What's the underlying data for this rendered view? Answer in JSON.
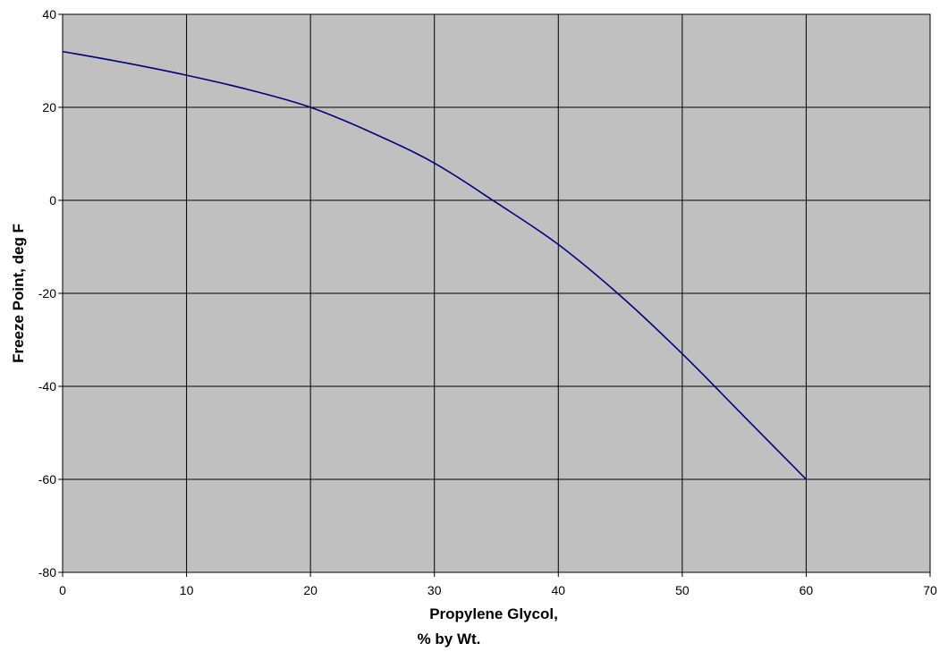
{
  "chart_data": {
    "type": "line",
    "title": "",
    "xlabel_lines": [
      "Propylene Glycol,",
      "% by Wt."
    ],
    "ylabel": "Freeze Point, deg F",
    "xlim": [
      0,
      70
    ],
    "ylim": [
      -80,
      40
    ],
    "xticks": [
      0,
      10,
      20,
      30,
      40,
      50,
      60,
      70
    ],
    "yticks": [
      40,
      20,
      0,
      -20,
      -40,
      -60,
      -80
    ],
    "grid": true,
    "legend": "none",
    "plot_background": "#c0c0c0",
    "line_color": "#000080",
    "series": [
      {
        "x": [
          0,
          5,
          10,
          15,
          20,
          25,
          30,
          35,
          40,
          45,
          50,
          55,
          60
        ],
        "y": [
          32,
          29.6,
          26.9,
          23.8,
          20,
          14.5,
          8,
          -0.5,
          -9.5,
          -20.5,
          -33,
          -46.5,
          -60
        ]
      }
    ]
  }
}
